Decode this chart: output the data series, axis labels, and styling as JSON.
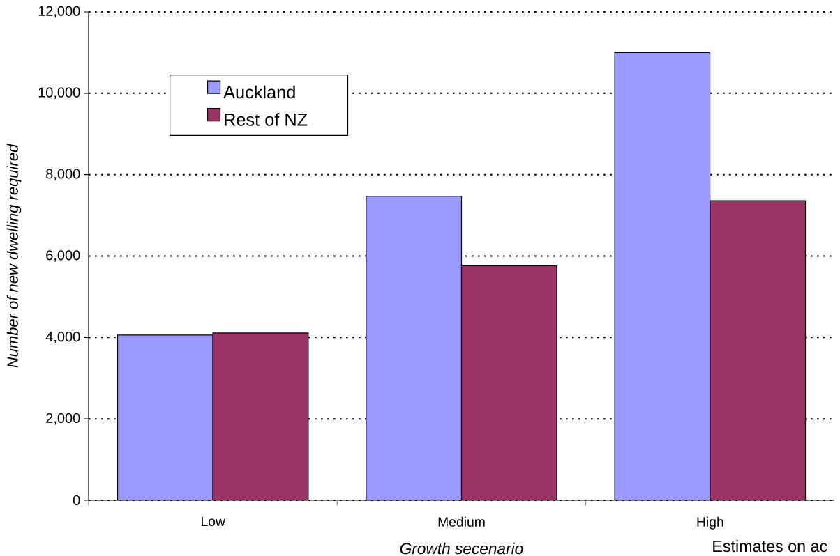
{
  "chart_data": {
    "type": "bar",
    "xlabel": "Growth secenario",
    "ylabel": "Number of new dwelling required",
    "categories": [
      "Low",
      "Medium",
      "High"
    ],
    "series": [
      {
        "name": "Auckland",
        "color": "#9999ff",
        "values": [
          4060,
          7470,
          11000
        ]
      },
      {
        "name": "Rest of NZ",
        "color": "#993366",
        "values": [
          4110,
          5760,
          7360
        ]
      }
    ],
    "ylim": [
      0,
      12000
    ],
    "yticks": [
      0,
      {
        "value": 2000,
        "label": "2,000"
      },
      {
        "value": 4000,
        "label": "4,000"
      },
      {
        "value": 6000,
        "label": "6,000"
      },
      {
        "value": 8000,
        "label": "8,000"
      },
      {
        "value": 10000,
        "label": "10,000"
      },
      {
        "value": 12000,
        "label": "12,000"
      }
    ],
    "grid": "y",
    "legend": "top left",
    "annotations": [
      "Estimates on ac"
    ]
  }
}
